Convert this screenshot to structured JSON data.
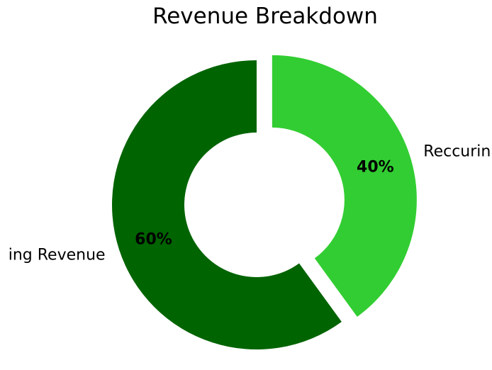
{
  "chart_data": {
    "type": "pie",
    "variant": "donut",
    "title": "Revenue Breakdown",
    "categories": [
      "ing Revenue",
      "Reccurin"
    ],
    "values": [
      60,
      40
    ],
    "value_labels": [
      "60%",
      "40%"
    ],
    "colors": [
      "#006400",
      "#32CD32"
    ],
    "exploded": [
      false,
      true
    ],
    "start": "top",
    "direction": "counterclockwise"
  }
}
